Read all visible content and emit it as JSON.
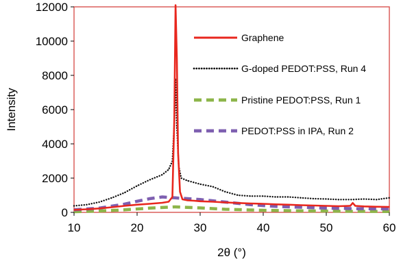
{
  "chart_data": {
    "type": "line",
    "title": "",
    "xlabel": "2θ (°)",
    "ylabel": "Intensity",
    "xlim": [
      10,
      60
    ],
    "ylim": [
      0,
      12000
    ],
    "x_ticks": [
      10,
      20,
      30,
      40,
      50,
      60
    ],
    "y_ticks": [
      0,
      2000,
      4000,
      6000,
      8000,
      10000,
      12000
    ],
    "grid": false,
    "legend_position": "top-right",
    "plot_border_color": "#d9534f",
    "series": [
      {
        "name": "Graphene",
        "color": "#e8271e",
        "style": "solid",
        "x": [
          10,
          12,
          14,
          16,
          18,
          20,
          22,
          24,
          25,
          25.6,
          25.9,
          26.1,
          26.3,
          26.5,
          26.8,
          27.2,
          28,
          29,
          30,
          32,
          34,
          36,
          38,
          40,
          42,
          44,
          46,
          48,
          50,
          52,
          53.8,
          54.2,
          54.6,
          56,
          58,
          60
        ],
        "values": [
          150,
          180,
          230,
          300,
          380,
          450,
          500,
          560,
          620,
          900,
          5500,
          12100,
          9000,
          3500,
          1200,
          760,
          700,
          680,
          650,
          620,
          580,
          550,
          520,
          500,
          470,
          450,
          420,
          400,
          380,
          360,
          380,
          550,
          380,
          350,
          330,
          320
        ]
      },
      {
        "name": "G-doped PEDOT:PSS, Run 4",
        "color": "#111111",
        "style": "dotted",
        "x": [
          10,
          12,
          14,
          16,
          18,
          20,
          22,
          24,
          25,
          25.6,
          25.9,
          26.1,
          26.3,
          26.6,
          27,
          28,
          29,
          30,
          32,
          34,
          36,
          38,
          40,
          42,
          44,
          46,
          48,
          50,
          52,
          54,
          56,
          58,
          60
        ],
        "values": [
          380,
          450,
          600,
          850,
          1150,
          1550,
          1900,
          2200,
          2500,
          3000,
          5200,
          7800,
          5000,
          2700,
          2000,
          1850,
          1750,
          1650,
          1500,
          1200,
          1000,
          950,
          950,
          900,
          900,
          850,
          800,
          780,
          750,
          750,
          780,
          750,
          850
        ]
      },
      {
        "name": "Pristine PEDOT:PSS, Run 1",
        "color": "#8db54a",
        "style": "dashed",
        "x": [
          10,
          14,
          18,
          22,
          26,
          30,
          34,
          40,
          46,
          52,
          60
        ],
        "values": [
          40,
          80,
          150,
          250,
          320,
          260,
          180,
          120,
          90,
          70,
          50
        ]
      },
      {
        "name": "PEDOT:PSS in IPA, Run 2",
        "color": "#7e5fb0",
        "style": "dashed",
        "x": [
          10,
          14,
          18,
          20,
          22,
          24,
          26,
          28,
          30,
          34,
          38,
          42,
          46,
          50,
          54,
          60
        ],
        "values": [
          150,
          250,
          480,
          650,
          800,
          900,
          850,
          800,
          750,
          600,
          450,
          350,
          300,
          250,
          220,
          200
        ]
      }
    ]
  }
}
